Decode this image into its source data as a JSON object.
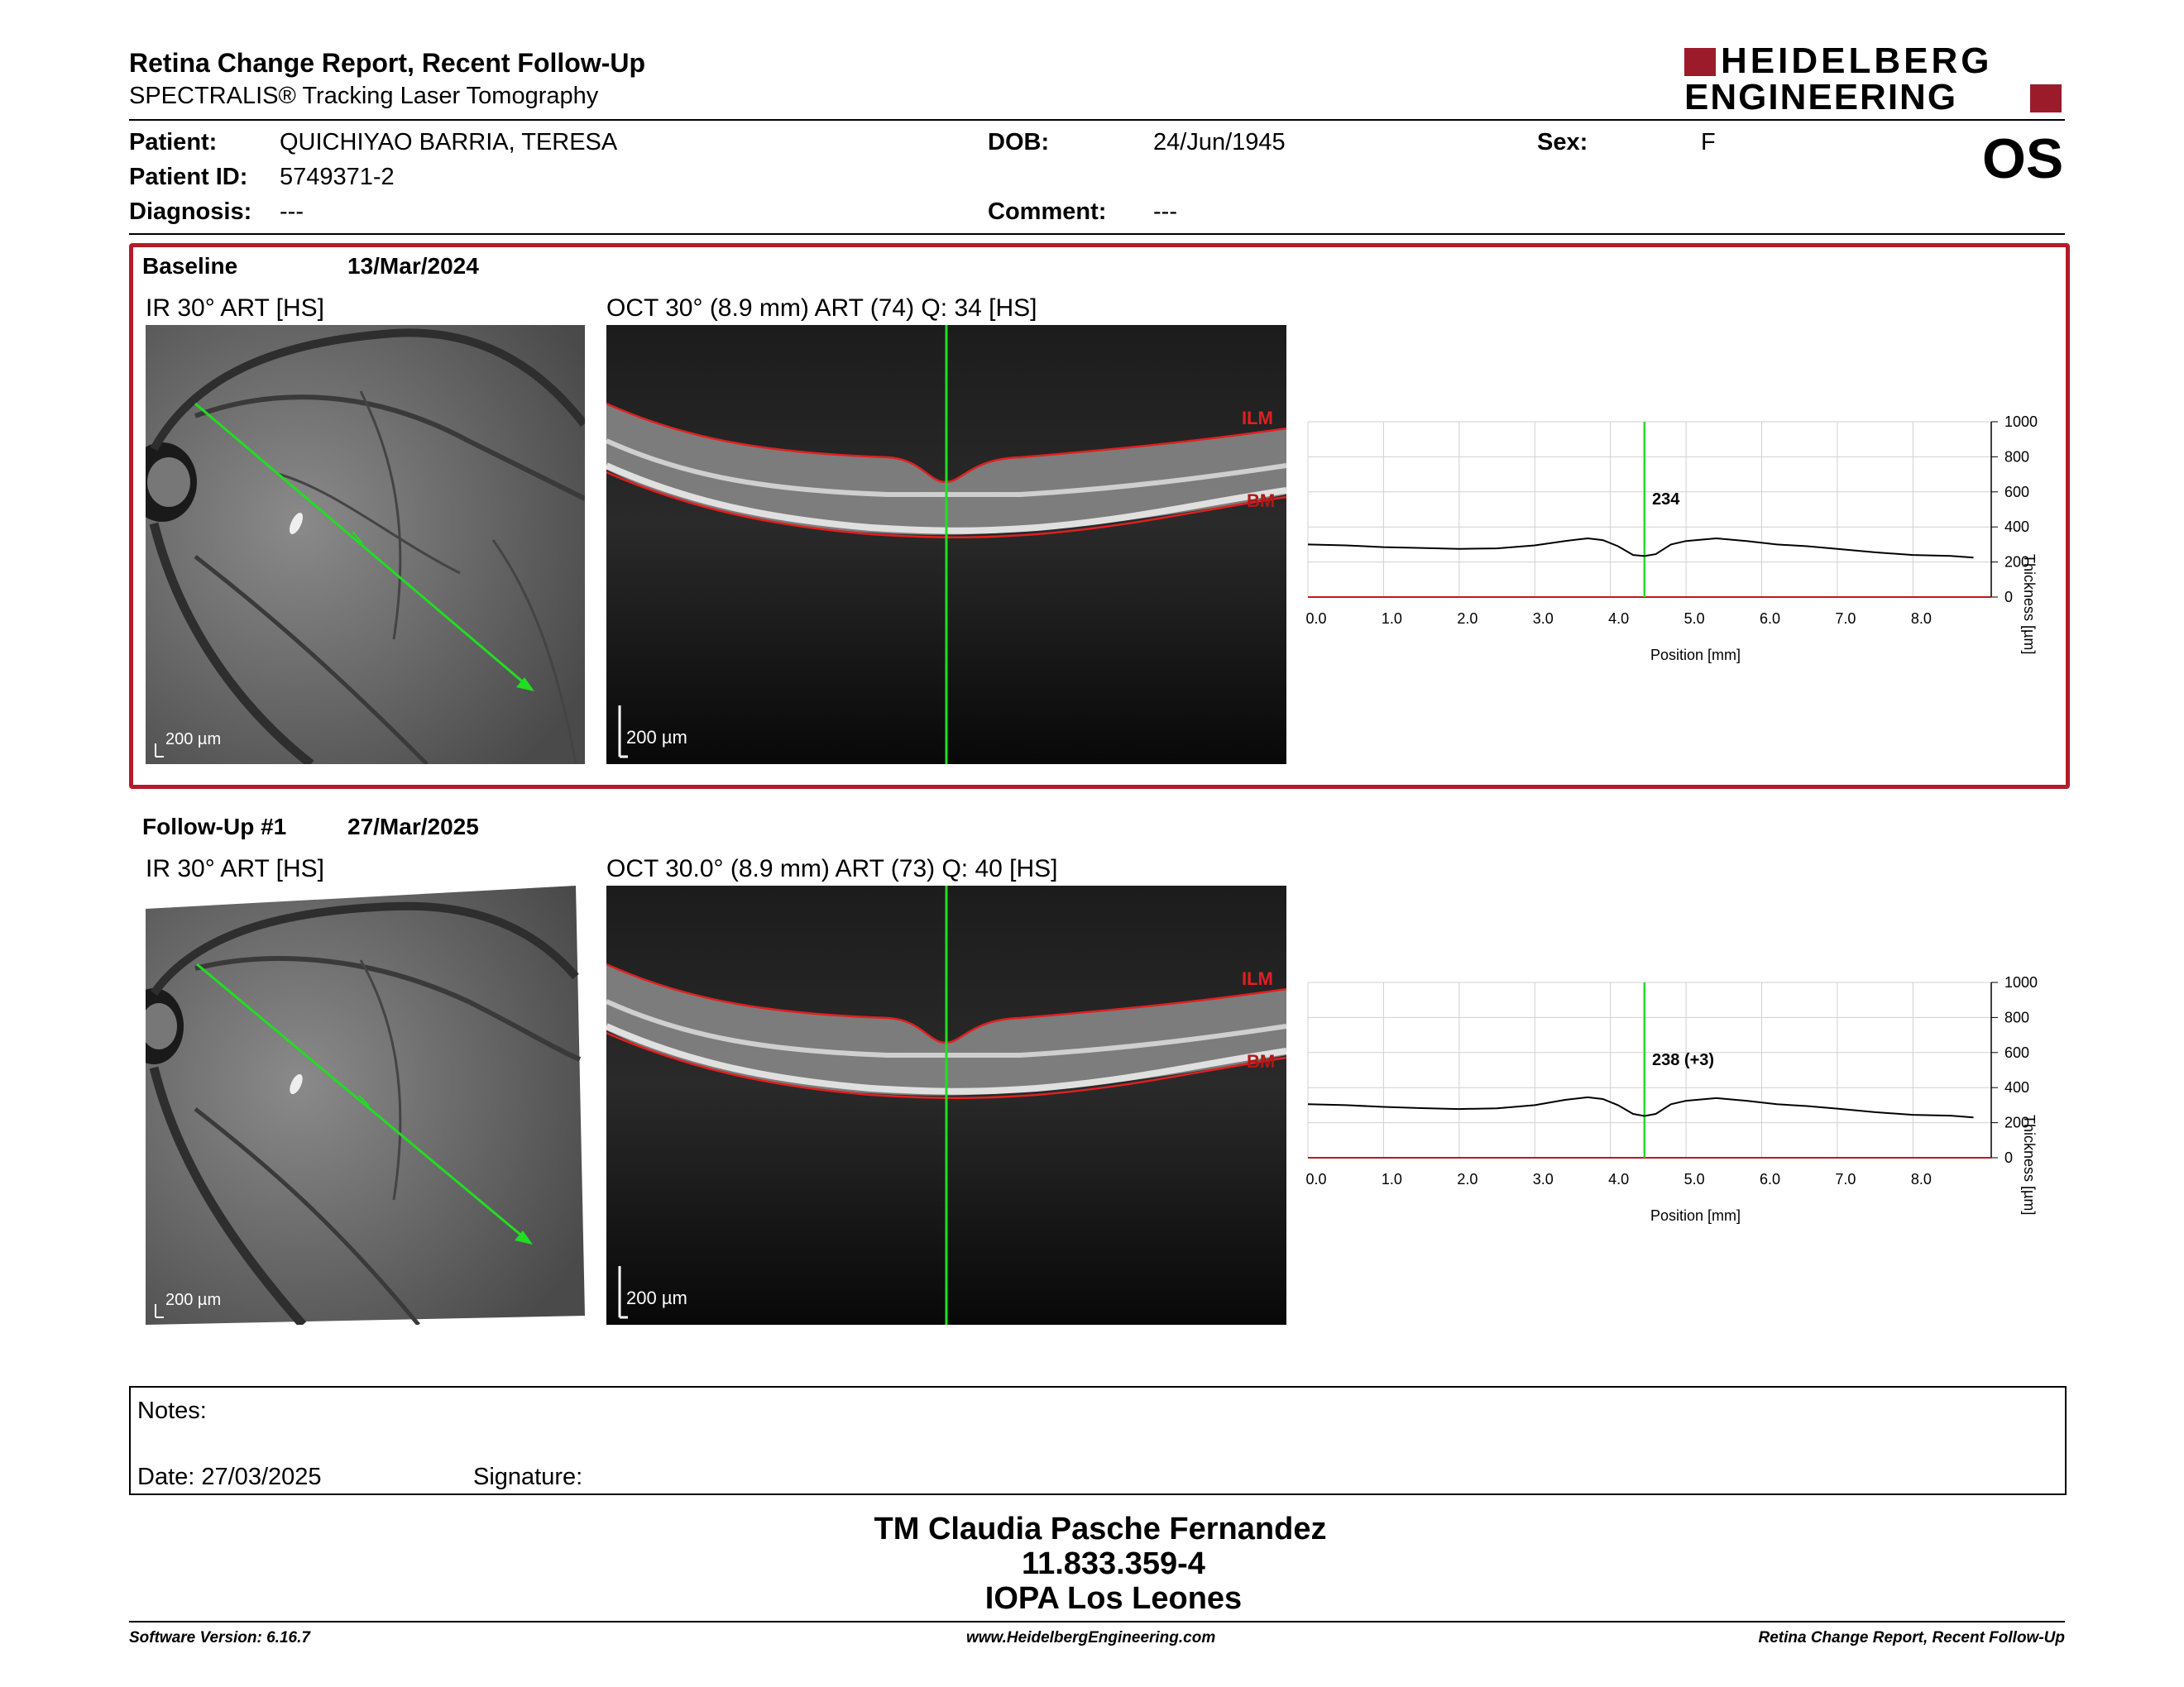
{
  "header": {
    "title": "Retina Change Report, Recent Follow-Up",
    "subtitle": "SPECTRALIS® Tracking Laser Tomography",
    "logo_line1": "HEIDELBERG",
    "logo_line2": "ENGINEERING",
    "eye": "OS"
  },
  "patient": {
    "patient_label": "Patient:",
    "patient_value": "QUICHIYAO BARRIA, TERESA",
    "id_label": "Patient ID:",
    "id_value": "5749371-2",
    "diagnosis_label": "Diagnosis:",
    "diagnosis_value": "---",
    "dob_label": "DOB:",
    "dob_value": "24/Jun/1945",
    "comment_label": "Comment:",
    "comment_value": "---",
    "sex_label": "Sex:",
    "sex_value": "F"
  },
  "baseline": {
    "label": "Baseline",
    "date": "13/Mar/2024",
    "ir_caption": "IR 30° ART [HS]",
    "oct_caption": "OCT 30° (8.9 mm) ART (74) Q: 34 [HS]",
    "scale": "200 µm",
    "ilm": "ILM",
    "bm": "BM",
    "readout": "234"
  },
  "followup": {
    "label": "Follow-Up #1",
    "date": "27/Mar/2025",
    "ir_caption": "IR 30° ART [HS]",
    "oct_caption": "OCT 30.0° (8.9 mm) ART (73) Q: 40 [HS]",
    "scale": "200 µm",
    "ilm": "ILM",
    "bm": "BM",
    "readout": "238 (+3)"
  },
  "chart_data": [
    {
      "type": "line",
      "xlabel": "Position [mm]",
      "ylabel": "Thickness [µm]",
      "xlim": [
        0,
        8.9
      ],
      "ylim": [
        0,
        1000
      ],
      "xticks": [
        "0.0",
        "1.0",
        "2.0",
        "3.0",
        "4.0",
        "5.0",
        "6.0",
        "7.0",
        "8.0"
      ],
      "yticks": [
        "0",
        "200",
        "400",
        "600",
        "800",
        "1000"
      ],
      "cursor_x": 4.45,
      "x": [
        0,
        0.5,
        1,
        1.5,
        2,
        2.5,
        3,
        3.4,
        3.7,
        3.9,
        4.1,
        4.3,
        4.45,
        4.6,
        4.8,
        5.0,
        5.4,
        5.8,
        6.2,
        6.6,
        7.0,
        7.5,
        8.0,
        8.5,
        8.8
      ],
      "y": [
        300,
        295,
        285,
        280,
        275,
        278,
        295,
        320,
        335,
        325,
        290,
        240,
        234,
        245,
        300,
        320,
        335,
        320,
        300,
        290,
        275,
        255,
        240,
        235,
        225
      ]
    },
    {
      "type": "line",
      "xlabel": "Position [mm]",
      "ylabel": "Thickness [µm]",
      "xlim": [
        0,
        8.9
      ],
      "ylim": [
        0,
        1000
      ],
      "xticks": [
        "0.0",
        "1.0",
        "2.0",
        "3.0",
        "4.0",
        "5.0",
        "6.0",
        "7.0",
        "8.0"
      ],
      "yticks": [
        "0",
        "200",
        "400",
        "600",
        "800",
        "1000"
      ],
      "cursor_x": 4.45,
      "x": [
        0,
        0.5,
        1,
        1.5,
        2,
        2.5,
        3,
        3.4,
        3.7,
        3.9,
        4.1,
        4.3,
        4.45,
        4.6,
        4.8,
        5.0,
        5.4,
        5.8,
        6.2,
        6.6,
        7.0,
        7.5,
        8.0,
        8.5,
        8.8
      ],
      "y": [
        305,
        300,
        290,
        283,
        278,
        282,
        300,
        330,
        345,
        335,
        300,
        250,
        238,
        250,
        305,
        325,
        340,
        325,
        305,
        295,
        280,
        260,
        245,
        240,
        230
      ]
    }
  ],
  "notes": {
    "label": "Notes:",
    "date_label": "Date: 27/03/2025",
    "signature_label": "Signature:"
  },
  "stamp": {
    "line1": "TM Claudia Pasche Fernandez",
    "line2": "11.833.359-4",
    "line3": "IOPA Los Leones"
  },
  "footer": {
    "software": "Software Version: 6.16.7",
    "website": "www.HeidelbergEngineering.com",
    "report": "Retina Change Report, Recent Follow-Up"
  }
}
